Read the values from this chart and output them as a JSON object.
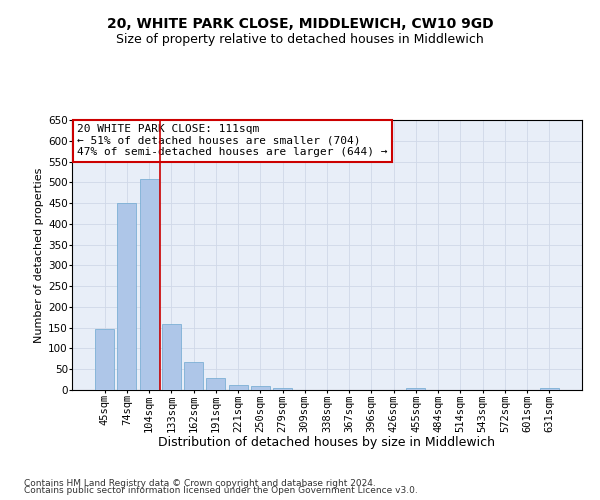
{
  "title": "20, WHITE PARK CLOSE, MIDDLEWICH, CW10 9GD",
  "subtitle": "Size of property relative to detached houses in Middlewich",
  "xlabel": "Distribution of detached houses by size in Middlewich",
  "ylabel": "Number of detached properties",
  "categories": [
    "45sqm",
    "74sqm",
    "104sqm",
    "133sqm",
    "162sqm",
    "191sqm",
    "221sqm",
    "250sqm",
    "279sqm",
    "309sqm",
    "338sqm",
    "367sqm",
    "396sqm",
    "426sqm",
    "455sqm",
    "484sqm",
    "514sqm",
    "543sqm",
    "572sqm",
    "601sqm",
    "631sqm"
  ],
  "values": [
    148,
    450,
    508,
    158,
    67,
    30,
    13,
    9,
    5,
    0,
    0,
    0,
    0,
    0,
    6,
    0,
    0,
    0,
    0,
    0,
    5
  ],
  "bar_color": "#aec6e8",
  "bar_edge_color": "#6ea8d0",
  "plot_bg_color": "#e8eef8",
  "fig_bg_color": "#ffffff",
  "grid_color": "#d0d8e8",
  "vline_x": 2.5,
  "vline_color": "#cc0000",
  "annotation_line1": "20 WHITE PARK CLOSE: 111sqm",
  "annotation_line2": "← 51% of detached houses are smaller (704)",
  "annotation_line3": "47% of semi-detached houses are larger (644) →",
  "annotation_box_color": "#ffffff",
  "annotation_box_edge_color": "#cc0000",
  "ylim": [
    0,
    650
  ],
  "yticks": [
    0,
    50,
    100,
    150,
    200,
    250,
    300,
    350,
    400,
    450,
    500,
    550,
    600,
    650
  ],
  "footer_line1": "Contains HM Land Registry data © Crown copyright and database right 2024.",
  "footer_line2": "Contains public sector information licensed under the Open Government Licence v3.0.",
  "title_fontsize": 10,
  "subtitle_fontsize": 9,
  "xlabel_fontsize": 9,
  "ylabel_fontsize": 8,
  "tick_fontsize": 7.5,
  "annotation_fontsize": 8,
  "footer_fontsize": 6.5
}
